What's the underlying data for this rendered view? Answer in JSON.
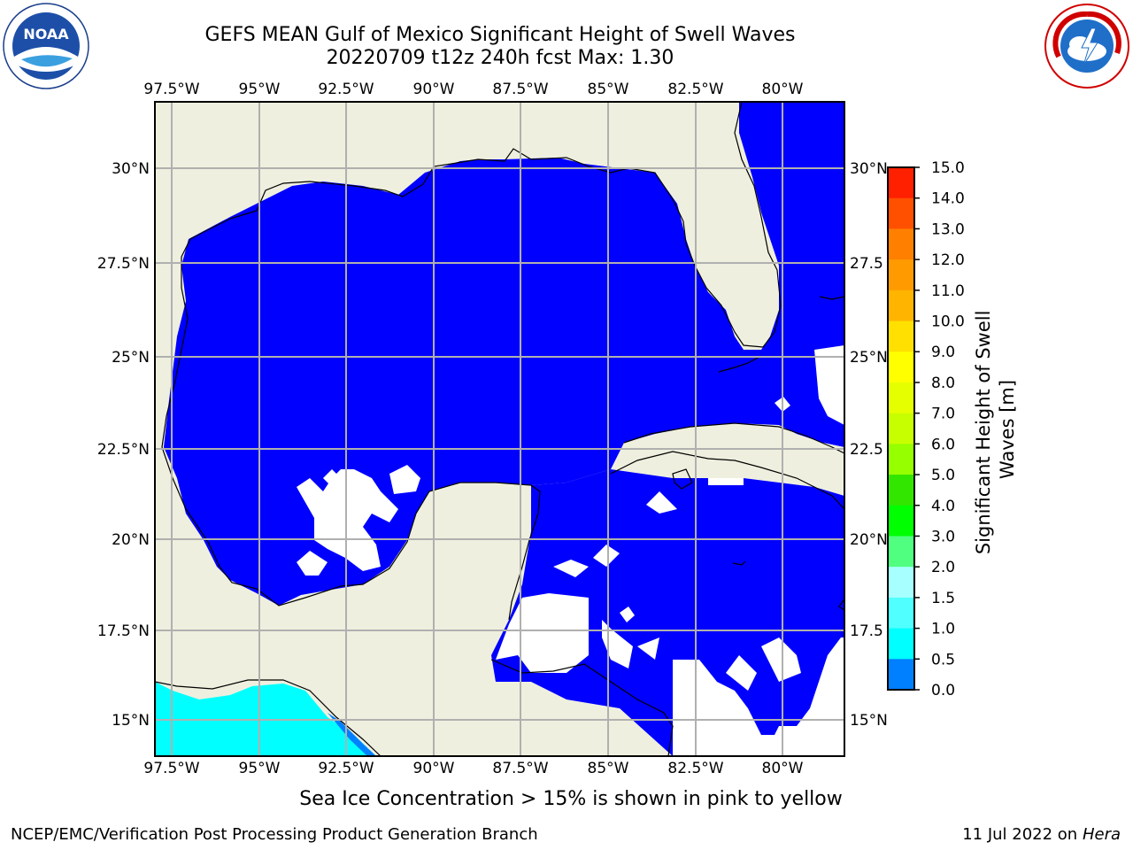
{
  "header": {
    "title_line1": "GEFS MEAN Gulf of Mexico Significant Height of Swell Waves",
    "title_line2": "20220709 t12z 240h fcst   Max: 1.30"
  },
  "map": {
    "lon_ticks": [
      "97.5°W",
      "95°W",
      "92.5°W",
      "90°W",
      "87.5°W",
      "85°W",
      "82.5°W",
      "80°W"
    ],
    "lat_ticks": [
      "30°N",
      "27.5°N",
      "25°N",
      "22.5°N",
      "20°N",
      "17.5°N",
      "15°N"
    ],
    "lat_ticks_right": [
      "30°N",
      "27.5",
      "25°N",
      "22.5",
      "20°N",
      "17.5",
      "15°N"
    ],
    "colors": {
      "ocean_fill": "#0000ff",
      "land": "#efefdf",
      "grid": "#b0b0b0",
      "low_band": "#00ffff"
    }
  },
  "colorbar": {
    "label": "Significant Height of Swell Waves [m]",
    "ticks": [
      "15.0",
      "14.0",
      "13.0",
      "12.0",
      "11.0",
      "10.0",
      "9.0",
      "8.0",
      "7.0",
      "6.0",
      "5.0",
      "4.0",
      "3.0",
      "2.0",
      "1.5",
      "1.0",
      "0.5",
      "0.0"
    ],
    "colors": [
      "#ff0000",
      "#ff2000",
      "#ff5000",
      "#ff8000",
      "#ff9b00",
      "#ffb400",
      "#ffe000",
      "#ffff00",
      "#e6ff00",
      "#c8ff00",
      "#96ff00",
      "#32e600",
      "#00ff00",
      "#50ff80",
      "#a8ffff",
      "#50ffff",
      "#00ffff",
      "#0080ff",
      "#0000ff"
    ]
  },
  "caption": "Sea Ice Concentration > 15% is shown in pink to yellow",
  "footer": {
    "left": "NCEP/EMC/Verification Post Processing Product Generation Branch",
    "right_date": "11 Jul 2022 on",
    "right_host": "Hera"
  },
  "logos": {
    "left": "noaa-logo",
    "right": "nws-logo"
  }
}
